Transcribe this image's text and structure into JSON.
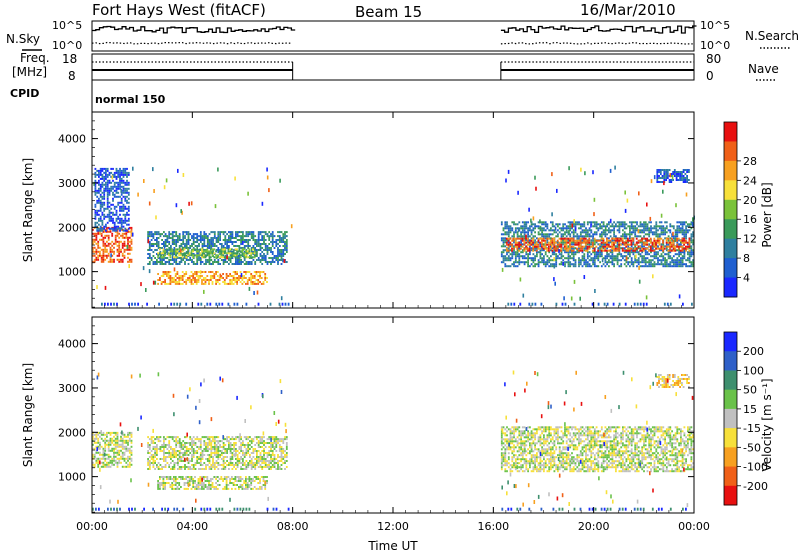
{
  "header": {
    "station": "Fort Hays West (fitACF)",
    "beam": "Beam 15",
    "date": "16/Mar/2010"
  },
  "top_panels": {
    "nsky_label": "N.Sky",
    "nsearch_label": "N.Search",
    "noise_ticks": [
      "10^5",
      "10^0"
    ],
    "freq_label_1": "Freq.",
    "freq_label_2": "[MHz]",
    "freq_ticks": [
      "18",
      "8"
    ],
    "nave_label": "Nave",
    "nave_ticks": [
      "80",
      "0"
    ],
    "cpid_label": "CPID",
    "cpid_value": "normal 150"
  },
  "colors": {
    "power": [
      "#1a28ff",
      "#1f5fd0",
      "#2f7f9f",
      "#3a9a5a",
      "#7ac23a",
      "#f7e03a",
      "#f7a020",
      "#f06018",
      "#e81010"
    ],
    "velocity": [
      "#1a28ff",
      "#2f60c8",
      "#3e8f6e",
      "#6ac24a",
      "#c0c0c0",
      "#f7e03a",
      "#f7a020",
      "#f06018",
      "#e81010"
    ]
  },
  "chart_data": [
    {
      "type": "heatmap",
      "name": "power-panel",
      "ylabel": "Slant Range [km]",
      "xlabel": "",
      "xlim_hours": [
        0,
        24
      ],
      "ylim": [
        180,
        4600
      ],
      "yticks": [
        "1000",
        "2000",
        "3000",
        "4000"
      ],
      "colorbar": {
        "label": "Power [dB]",
        "ticks": [
          "4",
          "8",
          "12",
          "16",
          "20",
          "24",
          "28"
        ]
      },
      "regions": [
        {
          "t0": 0.0,
          "t1": 1.6,
          "r0": 1200,
          "r1": 2000,
          "level": 7
        },
        {
          "t0": 0.1,
          "t1": 1.5,
          "r0": 1900,
          "r1": 3300,
          "level": 1
        },
        {
          "t0": 2.2,
          "t1": 7.8,
          "r0": 1150,
          "r1": 1900,
          "level": 2
        },
        {
          "t0": 2.6,
          "t1": 6.5,
          "r0": 1300,
          "r1": 1500,
          "level": 4
        },
        {
          "t0": 2.6,
          "t1": 7.0,
          "r0": 700,
          "r1": 1000,
          "level": 6
        },
        {
          "t0": 16.3,
          "t1": 24.0,
          "r0": 1100,
          "r1": 2100,
          "level": 2
        },
        {
          "t0": 16.5,
          "t1": 23.8,
          "r0": 1450,
          "r1": 1750,
          "level": 7
        },
        {
          "t0": 22.5,
          "t1": 23.8,
          "r0": 3000,
          "r1": 3300,
          "level": 1
        }
      ]
    },
    {
      "type": "heatmap",
      "name": "velocity-panel",
      "ylabel": "Slant Range [km]",
      "xlabel": "Time UT",
      "xlim_hours": [
        0,
        24
      ],
      "ylim": [
        180,
        4600
      ],
      "yticks": [
        "1000",
        "2000",
        "3000",
        "4000"
      ],
      "xticks": [
        "00:00",
        "04:00",
        "08:00",
        "12:00",
        "16:00",
        "20:00",
        "00:00"
      ],
      "colorbar": {
        "label": "Velocity [m s⁻¹]",
        "ticks": [
          "200",
          "100",
          "50",
          "15",
          "-15",
          "-50",
          "-100",
          "-200"
        ]
      },
      "regions": [
        {
          "t0": 0.0,
          "t1": 1.6,
          "r0": 1200,
          "r1": 2000,
          "level": 4
        },
        {
          "t0": 2.2,
          "t1": 7.8,
          "r0": 1150,
          "r1": 1900,
          "level": 4
        },
        {
          "t0": 2.6,
          "t1": 7.0,
          "r0": 700,
          "r1": 1000,
          "level": 4
        },
        {
          "t0": 16.3,
          "t1": 24.0,
          "r0": 1100,
          "r1": 2100,
          "level": 4
        },
        {
          "t0": 22.5,
          "t1": 23.8,
          "r0": 3000,
          "r1": 3300,
          "level": 5
        }
      ]
    }
  ]
}
